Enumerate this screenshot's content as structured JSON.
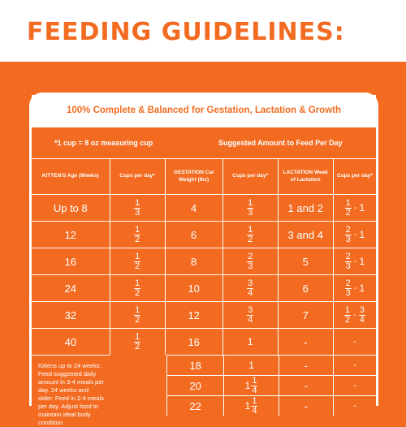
{
  "page": {
    "title": "FEEDING GUIDELINES:",
    "subtitle": "100% Complete & Balanced for Gestation, Lactation & Growth",
    "measure_note": "*1 cup = 8 oz measuring cup",
    "suggested_label": "Suggested Amount to Feed Per Day"
  },
  "table": {
    "headers": [
      "KITTEN'S Age (Weeks)",
      "Cups per day*",
      "GESTATION Cat Weight (lbs)",
      "Cups per day*",
      "LACTATION Week of Lactation",
      "Cups per day*"
    ],
    "rows": [
      {
        "age": "Up to 8",
        "kitten_cups": "1/3",
        "weight": "4",
        "gest_cups": "1/3",
        "week": "1 and 2",
        "lact_cups": "1/2 - 1"
      },
      {
        "age": "12",
        "kitten_cups": "1/2",
        "weight": "6",
        "gest_cups": "1/2",
        "week": "3 and 4",
        "lact_cups": "2/3 - 1"
      },
      {
        "age": "16",
        "kitten_cups": "1/2",
        "weight": "8",
        "gest_cups": "2/3",
        "week": "5",
        "lact_cups": "2/3 - 1"
      },
      {
        "age": "24",
        "kitten_cups": "1/2",
        "weight": "10",
        "gest_cups": "3/4",
        "week": "6",
        "lact_cups": "2/3 - 1"
      },
      {
        "age": "32",
        "kitten_cups": "1/2",
        "weight": "12",
        "gest_cups": "3/4",
        "week": "7",
        "lact_cups": "1/2 - 3/4"
      },
      {
        "age": "40",
        "kitten_cups": "1/2",
        "weight": "16",
        "gest_cups": "1",
        "week": "-",
        "lact_cups": "-"
      }
    ],
    "extra_rows": [
      {
        "weight": "18",
        "gest_cups": "1",
        "week": "-",
        "lact_cups": "-"
      },
      {
        "weight": "20",
        "gest_cups": "1 1/4",
        "week": "-",
        "lact_cups": "-"
      },
      {
        "weight": "22",
        "gest_cups": "1 1/4",
        "week": "-",
        "lact_cups": "-"
      }
    ],
    "note": "Kittens up to 24 weeks: Feed suggested daily amount in 3-4 meals per day. 24 weeks and older: Feed in 2-4 meals per day. Adjust food to maintain ideal body condition."
  }
}
